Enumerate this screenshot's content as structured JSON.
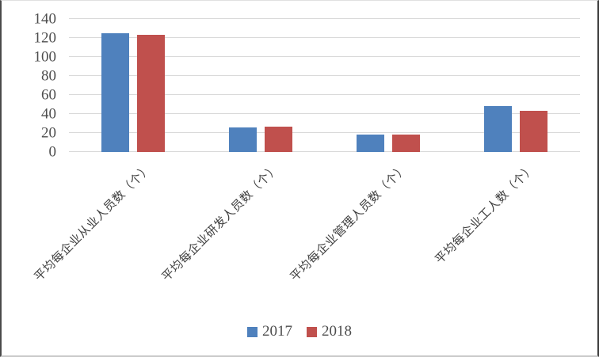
{
  "chart_data": {
    "type": "bar",
    "categories": [
      "平均每企业从业人员数（个）",
      "平均每企业研发人员数（个）",
      "平均每企业管理人员数（个）",
      "平均每企业工人数（个）"
    ],
    "series": [
      {
        "name": "2017",
        "color": "#4F81BD",
        "values": [
          125,
          26,
          18,
          48
        ]
      },
      {
        "name": "2018",
        "color": "#C0504D",
        "values": [
          123,
          27,
          18,
          43
        ]
      }
    ],
    "title": "",
    "xlabel": "",
    "ylabel": "",
    "ylim": [
      0,
      140
    ],
    "ytick_step": 20,
    "yticks": [
      0,
      20,
      40,
      60,
      80,
      100,
      120,
      140
    ],
    "grid": true,
    "legend_position": "bottom"
  },
  "colors": {
    "background": "#FFFFFF",
    "gridline": "#D9D9D9",
    "tick_text": "#4D4D4D",
    "category_text": "#404040",
    "bar_2017": "#4F81BD",
    "bar_2018": "#C0504D"
  }
}
